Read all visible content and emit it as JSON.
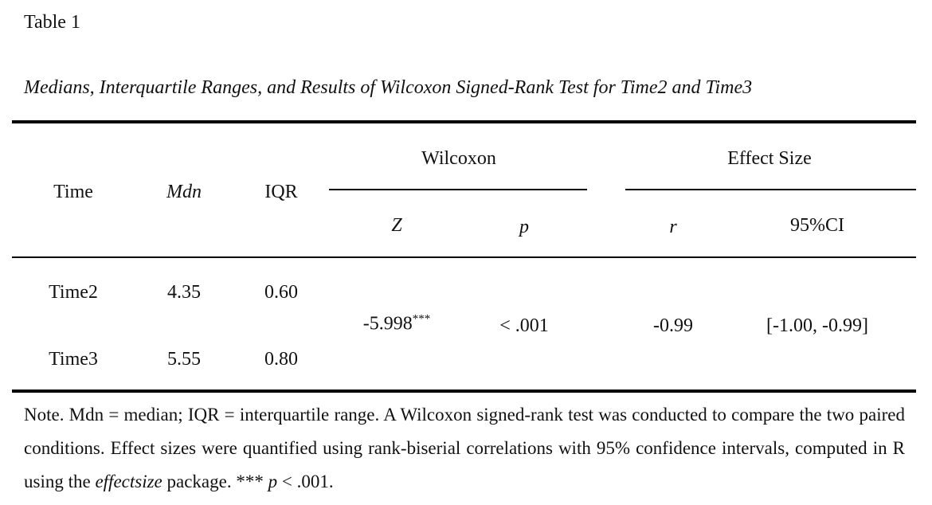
{
  "table_label": "Table 1",
  "title": "Medians, Interquartile Ranges, and Results of Wilcoxon Signed-Rank Test for Time2 and Time3",
  "header": {
    "groups": [
      "Wilcoxon",
      "Effect Size"
    ],
    "columns": [
      "Time",
      "Mdn",
      "IQR",
      "Z",
      "p",
      "r",
      "95%CI"
    ]
  },
  "rows": [
    [
      "Time2",
      "4.35",
      "0.60"
    ],
    [
      "Time3",
      "5.55",
      "0.80"
    ]
  ],
  "shared": {
    "z": "-5.998",
    "z_sup": "***",
    "p": "< .001",
    "r": "-0.99",
    "ci": "[-1.00, -0.99]"
  },
  "note": [
    "Note. Mdn = median; IQR = interquartile range. A Wilcoxon signed-rank test was conducted to compare the two paired conditions. Effect sizes were quantified using rank-biserial correlations with 95% confidence intervals, computed in R using the ",
    "effectsize",
    " package. *** ",
    "p",
    " < .001."
  ]
}
